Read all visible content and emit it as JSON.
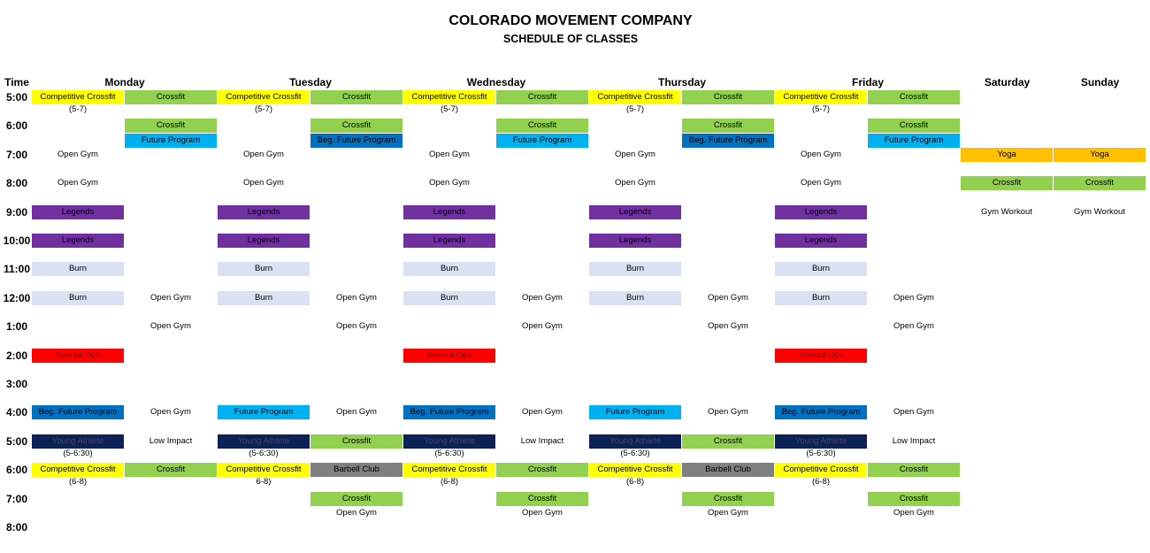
{
  "title": "COLORADO MOVEMENT COMPANY",
  "subtitle": "SCHEDULE OF CLASSES",
  "time_header": "Time",
  "days": [
    "Monday",
    "Tuesday",
    "Wednesday",
    "Thursday",
    "Friday",
    "Saturday",
    "Sunday"
  ],
  "times": [
    "5:00",
    "6:00",
    "7:00",
    "8:00",
    "9:00",
    "10:00",
    "11:00",
    "12:00",
    "1:00",
    "2:00",
    "3:00",
    "4:00",
    "5:00",
    "6:00",
    "7:00",
    "8:00"
  ],
  "colors": {
    "yellow": "#ffff00",
    "green": "#92d050",
    "cyan": "#00b0f0",
    "blue": "#0070c0",
    "purple": "#7030a0",
    "pale": "#dae1f2",
    "red": "#ff0000",
    "navy": "#0c2155",
    "orange": "#ffc000",
    "gray": "#808080"
  },
  "cells": [
    {
      "c": 0,
      "r": 0,
      "text": "Competitive Crossfit",
      "color": "yellow"
    },
    {
      "c": 1,
      "r": 0,
      "text": "Crossfit",
      "color": "green"
    },
    {
      "c": 2,
      "r": 0,
      "text": "Competitive Crossfit",
      "color": "yellow"
    },
    {
      "c": 3,
      "r": 0,
      "text": "Crossfit",
      "color": "green"
    },
    {
      "c": 4,
      "r": 0,
      "text": "Competitive Crossfit",
      "color": "yellow"
    },
    {
      "c": 5,
      "r": 0,
      "text": "Crossfit",
      "color": "green"
    },
    {
      "c": 6,
      "r": 0,
      "text": "Competitive Crossfit",
      "color": "yellow"
    },
    {
      "c": 7,
      "r": 0,
      "text": "Crossfit",
      "color": "green"
    },
    {
      "c": 8,
      "r": 0,
      "text": "Competitive Crossfit",
      "color": "yellow"
    },
    {
      "c": 9,
      "r": 0,
      "text": "Crossfit",
      "color": "green"
    },
    {
      "c": 0,
      "r": 1,
      "text": "(5-7)",
      "color": "plain"
    },
    {
      "c": 2,
      "r": 1,
      "text": "(5-7)",
      "color": "plain"
    },
    {
      "c": 4,
      "r": 1,
      "text": "(5-7)",
      "color": "plain"
    },
    {
      "c": 6,
      "r": 1,
      "text": "(5-7)",
      "color": "plain"
    },
    {
      "c": 8,
      "r": 1,
      "text": "(5-7)",
      "color": "plain"
    },
    {
      "c": 1,
      "r": 2,
      "text": "Crossfit",
      "color": "green"
    },
    {
      "c": 3,
      "r": 2,
      "text": "Crossfit",
      "color": "green"
    },
    {
      "c": 5,
      "r": 2,
      "text": "Crossfit",
      "color": "green"
    },
    {
      "c": 7,
      "r": 2,
      "text": "Crossfit",
      "color": "green"
    },
    {
      "c": 9,
      "r": 2,
      "text": "Crossfit",
      "color": "green"
    },
    {
      "c": 1,
      "r": 3,
      "text": "Future Program",
      "color": "cyan"
    },
    {
      "c": 3,
      "r": 3,
      "text": "Beg. Future Program",
      "color": "blue"
    },
    {
      "c": 5,
      "r": 3,
      "text": "Future Program",
      "color": "cyan"
    },
    {
      "c": 7,
      "r": 3,
      "text": "Beg. Future Program",
      "color": "blue"
    },
    {
      "c": 9,
      "r": 3,
      "text": "Future Program",
      "color": "cyan"
    },
    {
      "c": 0,
      "r": 4,
      "text": "Open Gym",
      "color": "plain"
    },
    {
      "c": 2,
      "r": 4,
      "text": "Open Gym",
      "color": "plain"
    },
    {
      "c": 4,
      "r": 4,
      "text": "Open Gym",
      "color": "plain"
    },
    {
      "c": 6,
      "r": 4,
      "text": "Open Gym",
      "color": "plain"
    },
    {
      "c": 8,
      "r": 4,
      "text": "Open Gym",
      "color": "plain"
    },
    {
      "c": 10,
      "r": 4,
      "text": "Yoga",
      "color": "orange"
    },
    {
      "c": 11,
      "r": 4,
      "text": "Yoga",
      "color": "orange"
    },
    {
      "c": 0,
      "r": 6,
      "text": "Open Gym",
      "color": "plain"
    },
    {
      "c": 2,
      "r": 6,
      "text": "Open Gym",
      "color": "plain"
    },
    {
      "c": 4,
      "r": 6,
      "text": "Open Gym",
      "color": "plain"
    },
    {
      "c": 6,
      "r": 6,
      "text": "Open Gym",
      "color": "plain"
    },
    {
      "c": 8,
      "r": 6,
      "text": "Open Gym",
      "color": "plain"
    },
    {
      "c": 10,
      "r": 6,
      "text": "Crossfit",
      "color": "green"
    },
    {
      "c": 11,
      "r": 6,
      "text": "Crossfit",
      "color": "green"
    },
    {
      "c": 0,
      "r": 8,
      "text": "Legends",
      "color": "purple"
    },
    {
      "c": 2,
      "r": 8,
      "text": "Legends",
      "color": "purple"
    },
    {
      "c": 4,
      "r": 8,
      "text": "Legends",
      "color": "purple"
    },
    {
      "c": 6,
      "r": 8,
      "text": "Legends",
      "color": "purple"
    },
    {
      "c": 8,
      "r": 8,
      "text": "Legends",
      "color": "purple"
    },
    {
      "c": 10,
      "r": 8,
      "text": "Gym Workout",
      "color": "plain"
    },
    {
      "c": 11,
      "r": 8,
      "text": "Gym Workout",
      "color": "plain"
    },
    {
      "c": 0,
      "r": 10,
      "text": "Legends",
      "color": "purple"
    },
    {
      "c": 2,
      "r": 10,
      "text": "Legends",
      "color": "purple"
    },
    {
      "c": 4,
      "r": 10,
      "text": "Legends",
      "color": "purple"
    },
    {
      "c": 6,
      "r": 10,
      "text": "Legends",
      "color": "purple"
    },
    {
      "c": 8,
      "r": 10,
      "text": "Legends",
      "color": "purple"
    },
    {
      "c": 0,
      "r": 12,
      "text": "Burn",
      "color": "pale"
    },
    {
      "c": 2,
      "r": 12,
      "text": "Burn",
      "color": "pale"
    },
    {
      "c": 4,
      "r": 12,
      "text": "Burn",
      "color": "pale"
    },
    {
      "c": 6,
      "r": 12,
      "text": "Burn",
      "color": "pale"
    },
    {
      "c": 8,
      "r": 12,
      "text": "Burn",
      "color": "pale"
    },
    {
      "c": 0,
      "r": 14,
      "text": "Burn",
      "color": "pale"
    },
    {
      "c": 1,
      "r": 14,
      "text": "Open Gym",
      "color": "plain"
    },
    {
      "c": 2,
      "r": 14,
      "text": "Burn",
      "color": "pale"
    },
    {
      "c": 3,
      "r": 14,
      "text": "Open Gym",
      "color": "plain"
    },
    {
      "c": 4,
      "r": 14,
      "text": "Burn",
      "color": "pale"
    },
    {
      "c": 5,
      "r": 14,
      "text": "Open Gym",
      "color": "plain"
    },
    {
      "c": 6,
      "r": 14,
      "text": "Burn",
      "color": "pale"
    },
    {
      "c": 7,
      "r": 14,
      "text": "Open Gym",
      "color": "plain"
    },
    {
      "c": 8,
      "r": 14,
      "text": "Burn",
      "color": "pale"
    },
    {
      "c": 9,
      "r": 14,
      "text": "Open Gym",
      "color": "plain"
    },
    {
      "c": 1,
      "r": 16,
      "text": "Open Gym",
      "color": "plain"
    },
    {
      "c": 3,
      "r": 16,
      "text": "Open Gym",
      "color": "plain"
    },
    {
      "c": 5,
      "r": 16,
      "text": "Open Gym",
      "color": "plain"
    },
    {
      "c": 7,
      "r": 16,
      "text": "Open Gym",
      "color": "plain"
    },
    {
      "c": 9,
      "r": 16,
      "text": "Open Gym",
      "color": "plain"
    },
    {
      "c": 0,
      "r": 18,
      "text": "Special Ops",
      "color": "red"
    },
    {
      "c": 4,
      "r": 18,
      "text": "Special Ops",
      "color": "red"
    },
    {
      "c": 8,
      "r": 18,
      "text": "Special Ops",
      "color": "red"
    },
    {
      "c": 0,
      "r": 22,
      "text": "Beg. Future Program",
      "color": "blue"
    },
    {
      "c": 1,
      "r": 22,
      "text": "Open Gym",
      "color": "plain"
    },
    {
      "c": 2,
      "r": 22,
      "text": "Future Program",
      "color": "cyan"
    },
    {
      "c": 3,
      "r": 22,
      "text": "Open Gym",
      "color": "plain"
    },
    {
      "c": 4,
      "r": 22,
      "text": "Beg. Future Program",
      "color": "blue"
    },
    {
      "c": 5,
      "r": 22,
      "text": "Open Gym",
      "color": "plain"
    },
    {
      "c": 6,
      "r": 22,
      "text": "Future Program",
      "color": "cyan"
    },
    {
      "c": 7,
      "r": 22,
      "text": "Open Gym",
      "color": "plain"
    },
    {
      "c": 8,
      "r": 22,
      "text": "Beg. Future Program",
      "color": "blue"
    },
    {
      "c": 9,
      "r": 22,
      "text": "Open Gym",
      "color": "plain"
    },
    {
      "c": 0,
      "r": 24,
      "text": "Young Athlete",
      "color": "navy"
    },
    {
      "c": 1,
      "r": 24,
      "text": "Low Impact",
      "color": "plain"
    },
    {
      "c": 2,
      "r": 24,
      "text": "Young Athlete",
      "color": "navy"
    },
    {
      "c": 3,
      "r": 24,
      "text": "Crossfit",
      "color": "green"
    },
    {
      "c": 4,
      "r": 24,
      "text": "Young Athlete",
      "color": "navy"
    },
    {
      "c": 5,
      "r": 24,
      "text": "Low Impact",
      "color": "plain"
    },
    {
      "c": 6,
      "r": 24,
      "text": "Young Athlete",
      "color": "navy"
    },
    {
      "c": 7,
      "r": 24,
      "text": "Crossfit",
      "color": "green"
    },
    {
      "c": 8,
      "r": 24,
      "text": "Young Athlete",
      "color": "navy"
    },
    {
      "c": 9,
      "r": 24,
      "text": "Low Impact",
      "color": "plain"
    },
    {
      "c": 0,
      "r": 25,
      "text": "(5-6:30)",
      "color": "plain"
    },
    {
      "c": 2,
      "r": 25,
      "text": "(5-6:30)",
      "color": "plain"
    },
    {
      "c": 4,
      "r": 25,
      "text": "(5-6:30)",
      "color": "plain"
    },
    {
      "c": 6,
      "r": 25,
      "text": "(5-6:30)",
      "color": "plain"
    },
    {
      "c": 8,
      "r": 25,
      "text": "(5-6:30)",
      "color": "plain"
    },
    {
      "c": 0,
      "r": 26,
      "text": "Competitive Crossfit",
      "color": "yellow"
    },
    {
      "c": 1,
      "r": 26,
      "text": "Crossfit",
      "color": "green"
    },
    {
      "c": 2,
      "r": 26,
      "text": "Competitive Crossfit",
      "color": "yellow"
    },
    {
      "c": 3,
      "r": 26,
      "text": "Barbell Club",
      "color": "gray"
    },
    {
      "c": 4,
      "r": 26,
      "text": "Competitive Crossfit",
      "color": "yellow"
    },
    {
      "c": 5,
      "r": 26,
      "text": "Crossfit",
      "color": "green"
    },
    {
      "c": 6,
      "r": 26,
      "text": "Competitive Crossfit",
      "color": "yellow"
    },
    {
      "c": 7,
      "r": 26,
      "text": "Barbell Club",
      "color": "gray"
    },
    {
      "c": 8,
      "r": 26,
      "text": "Competitive Crossfit",
      "color": "yellow"
    },
    {
      "c": 9,
      "r": 26,
      "text": "Crossfit",
      "color": "green"
    },
    {
      "c": 0,
      "r": 27,
      "text": "(6-8)",
      "color": "plain"
    },
    {
      "c": 2,
      "r": 27,
      "text": "6-8)",
      "color": "plain"
    },
    {
      "c": 4,
      "r": 27,
      "text": "(6-8)",
      "color": "plain"
    },
    {
      "c": 6,
      "r": 27,
      "text": "(6-8)",
      "color": "plain"
    },
    {
      "c": 8,
      "r": 27,
      "text": "(6-8)",
      "color": "plain"
    },
    {
      "c": 3,
      "r": 28,
      "text": "Crossfit",
      "color": "green"
    },
    {
      "c": 5,
      "r": 28,
      "text": "Crossfit",
      "color": "green"
    },
    {
      "c": 7,
      "r": 28,
      "text": "Crossfit",
      "color": "green"
    },
    {
      "c": 9,
      "r": 28,
      "text": "Crossfit",
      "color": "green"
    },
    {
      "c": 3,
      "r": 29,
      "text": "Open Gym",
      "color": "plain"
    },
    {
      "c": 5,
      "r": 29,
      "text": "Open Gym",
      "color": "plain"
    },
    {
      "c": 7,
      "r": 29,
      "text": "Open Gym",
      "color": "plain"
    },
    {
      "c": 9,
      "r": 29,
      "text": "Open Gym",
      "color": "plain"
    }
  ]
}
